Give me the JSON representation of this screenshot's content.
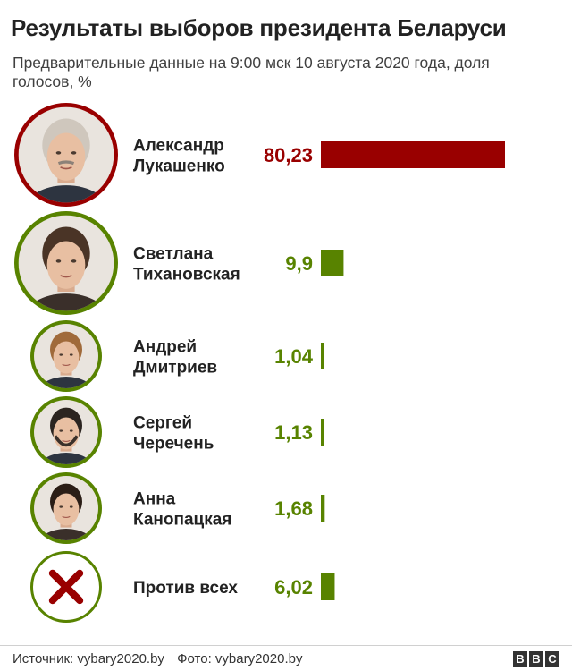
{
  "header": {
    "title": "Результаты выборов президента Беларуси",
    "subtitle": "Предварительные данные на 9:00 мск 10 августа 2020 года, доля голосов, %"
  },
  "colors": {
    "winner": "#990000",
    "others": "#588300",
    "against_mark": "#990000"
  },
  "chart_data": {
    "type": "bar",
    "orientation": "horizontal",
    "unit": "%",
    "categories": [
      "Александр Лукашенко",
      "Светлана Тихановская",
      "Андрей Дмитриев",
      "Сергей Черечень",
      "Анна Канопацкая",
      "Против всех"
    ],
    "name_lines": [
      [
        "Александр",
        "Лукашенко"
      ],
      [
        "Светлана",
        "Тихановская"
      ],
      [
        "Андрей",
        "Дмитриев"
      ],
      [
        "Сергей",
        "Черечень"
      ],
      [
        "Анна",
        "Канопацкая"
      ],
      [
        "Против всех"
      ]
    ],
    "values": [
      80.23,
      9.9,
      1.04,
      1.13,
      1.68,
      6.02
    ],
    "value_labels": [
      "80,23",
      "9,9",
      "1,04",
      "1,13",
      "1,68",
      "6,02"
    ],
    "icons": [
      "portrait",
      "portrait",
      "portrait",
      "portrait",
      "portrait",
      "x-mark-icon"
    ]
  },
  "footer": {
    "source": "Источник: vybary2020.by",
    "photo": "Фото: vybary2020.by",
    "logo_letters": [
      "B",
      "B",
      "C"
    ]
  }
}
